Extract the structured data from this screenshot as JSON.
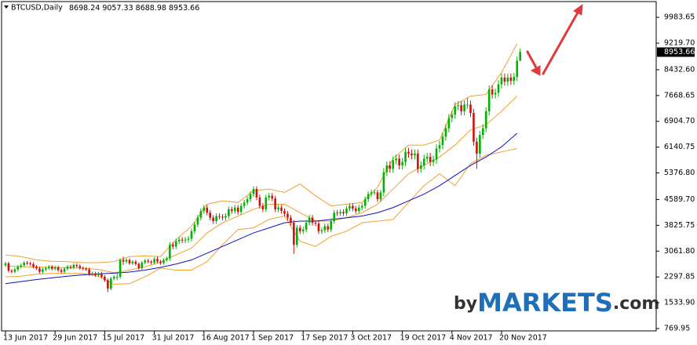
{
  "chart_data": {
    "type": "candlestick",
    "symbol": "BTCUSD,Daily",
    "categories": [
      "13 Jun 2017",
      null,
      null,
      null,
      null,
      null,
      null,
      null,
      null,
      null,
      null,
      null,
      null,
      null,
      null,
      null,
      "29 Jun 2017",
      null,
      null,
      null,
      null,
      null,
      null,
      null,
      null,
      null,
      null,
      null,
      null,
      null,
      null,
      null,
      "15 Jul 2017",
      null,
      null,
      null,
      null,
      null,
      null,
      null,
      null,
      null,
      null,
      null,
      null,
      null,
      null,
      null,
      "31 Jul 2017",
      null,
      null,
      null,
      null,
      null,
      null,
      null,
      null,
      null,
      null,
      null,
      null,
      null,
      null,
      null,
      "16 Aug 2017",
      null,
      null,
      null,
      null,
      null,
      null,
      null,
      null,
      null,
      null,
      null,
      null,
      null,
      null,
      null,
      "1 Sep 2017",
      null,
      null,
      null,
      null,
      null,
      null,
      null,
      null,
      null,
      null,
      null,
      null,
      null,
      null,
      null,
      "17 Sep 2017",
      null,
      null,
      null,
      null,
      null,
      null,
      null,
      null,
      null,
      null,
      null,
      null,
      null,
      null,
      null,
      "3 Oct 2017",
      null,
      null,
      null,
      null,
      null,
      null,
      null,
      null,
      null,
      null,
      null,
      null,
      null,
      null,
      null,
      "19 Oct 2017",
      null,
      null,
      null,
      null,
      null,
      null,
      null,
      null,
      null,
      null,
      null,
      null,
      null,
      null,
      null,
      "4 Nov 2017",
      null,
      null,
      null,
      null,
      null,
      null,
      null,
      null,
      null,
      null,
      null,
      null,
      null,
      null,
      null,
      "20 Nov 2017",
      null,
      null,
      null,
      null,
      null,
      null
    ],
    "open": [
      2650,
      2700,
      2480,
      2450,
      2520,
      2600,
      2640,
      2720,
      2700,
      2680,
      2600,
      2550,
      2450,
      2520,
      2560,
      2600,
      2540,
      2580,
      2500,
      2450,
      2540,
      2600,
      2580,
      2650,
      2620,
      2560,
      2540,
      2520,
      2380,
      2400,
      2350,
      2400,
      2300,
      2200,
      1950,
      2250,
      2300,
      2300,
      2800,
      2750,
      2800,
      2700,
      2750,
      2680,
      2560,
      2720,
      2780,
      2750,
      2720,
      2830,
      2750,
      2710,
      2800,
      2850,
      3250,
      3200,
      3350,
      3400,
      3380,
      3400,
      3430,
      3650,
      3850,
      4050,
      4250,
      4350,
      4200,
      4050,
      3950,
      4100,
      4080,
      4050,
      4100,
      4300,
      4250,
      4350,
      4220,
      4400,
      4500,
      4600,
      4750,
      4900,
      4650,
      4400,
      4300,
      4650,
      4700,
      4620,
      4300,
      4350,
      4250,
      4170,
      4050,
      3900,
      3250,
      3750,
      3650,
      3700,
      3900,
      4050,
      3900,
      3880,
      3650,
      3680,
      3800,
      3700,
      3950,
      4200,
      4180,
      4220,
      4180,
      4320,
      4400,
      4320,
      4250,
      4350,
      4400,
      4600,
      4750,
      4800,
      4800,
      4600,
      4800,
      5400,
      5600,
      5500,
      5750,
      5800,
      5600,
      5700,
      6000,
      5950,
      5900,
      5950,
      5500,
      5600,
      5800,
      5850,
      5700,
      5770,
      6100,
      6200,
      6450,
      6700,
      7000,
      7100,
      7350,
      7380,
      7200,
      7400,
      7400,
      7150,
      6300,
      5950,
      6500,
      6700,
      7200,
      7850,
      7700,
      7750,
      8000,
      8200,
      8080,
      8200,
      8100,
      8220,
      8698.24
    ],
    "high": [
      2750,
      2750,
      2530,
      2570,
      2650,
      2690,
      2770,
      2770,
      2750,
      2730,
      2650,
      2600,
      2570,
      2610,
      2650,
      2650,
      2630,
      2630,
      2550,
      2590,
      2650,
      2650,
      2700,
      2700,
      2670,
      2610,
      2590,
      2570,
      2450,
      2450,
      2450,
      2450,
      2350,
      2250,
      2300,
      2350,
      2400,
      2850,
      2900,
      2850,
      2850,
      2800,
      2800,
      2730,
      2770,
      2830,
      2830,
      2800,
      2880,
      2900,
      2800,
      2850,
      2900,
      3330,
      3330,
      3430,
      3480,
      3480,
      3480,
      3510,
      3730,
      3930,
      4130,
      4330,
      4430,
      4430,
      4280,
      4130,
      4180,
      4180,
      4160,
      4180,
      4380,
      4380,
      4430,
      4430,
      4480,
      4580,
      4680,
      4830,
      4980,
      4980,
      4730,
      4480,
      4730,
      4780,
      4780,
      4700,
      4430,
      4430,
      4330,
      4250,
      4130,
      3980,
      3830,
      3830,
      3780,
      3980,
      4130,
      4130,
      3980,
      3960,
      3760,
      3880,
      3880,
      4030,
      4280,
      4280,
      4300,
      4300,
      4400,
      4480,
      4480,
      4400,
      4430,
      4480,
      4680,
      4830,
      4880,
      4880,
      4880,
      4880,
      5520,
      5720,
      5720,
      5870,
      5920,
      5920,
      5820,
      6120,
      6120,
      6070,
      6070,
      6070,
      5720,
      5920,
      5970,
      5970,
      5890,
      6220,
      6320,
      6570,
      6820,
      7120,
      7220,
      7470,
      7500,
      7500,
      7520,
      7600,
      7520,
      7270,
      6420,
      6620,
      6820,
      7320,
      7970,
      7970,
      7870,
      8120,
      8320,
      8320,
      8320,
      8320,
      8340,
      8820,
      9057.33
    ],
    "low": [
      2600,
      2430,
      2400,
      2400,
      2470,
      2550,
      2590,
      2650,
      2630,
      2550,
      2500,
      2400,
      2400,
      2470,
      2510,
      2490,
      2490,
      2450,
      2400,
      2400,
      2490,
      2530,
      2530,
      2570,
      2510,
      2490,
      2470,
      2330,
      2330,
      2300,
      2300,
      2250,
      2150,
      1850,
      1900,
      2200,
      2200,
      2250,
      2650,
      2700,
      2650,
      2650,
      2630,
      2510,
      2510,
      2670,
      2700,
      2670,
      2670,
      2700,
      2660,
      2660,
      2750,
      2770,
      3120,
      3120,
      3270,
      3300,
      3300,
      3320,
      3350,
      3570,
      3770,
      3970,
      4170,
      4120,
      3970,
      3870,
      3870,
      4000,
      3970,
      3970,
      4020,
      4170,
      4170,
      4140,
      4140,
      4320,
      4420,
      4520,
      4670,
      4570,
      4320,
      4220,
      4220,
      4570,
      4540,
      4220,
      4220,
      4170,
      4090,
      3970,
      3820,
      2980,
      3170,
      3570,
      3570,
      3620,
      3820,
      3820,
      3800,
      3570,
      3570,
      3600,
      3620,
      3620,
      3870,
      4100,
      4100,
      4100,
      4100,
      4240,
      4240,
      4170,
      4170,
      4270,
      4320,
      4520,
      4670,
      4720,
      4520,
      4520,
      4680,
      5280,
      5380,
      5380,
      5630,
      5480,
      5480,
      5580,
      5830,
      5780,
      5780,
      5380,
      5380,
      5480,
      5680,
      5580,
      5580,
      5650,
      5980,
      6080,
      6330,
      6580,
      6880,
      6980,
      7230,
      7080,
      7080,
      7280,
      7030,
      6180,
      5500,
      5830,
      6380,
      6580,
      7080,
      7580,
      7580,
      7630,
      7880,
      7960,
      7960,
      7980,
      7980,
      8100,
      8688.98
    ],
    "close": [
      2700,
      2480,
      2450,
      2520,
      2600,
      2640,
      2720,
      2700,
      2680,
      2600,
      2550,
      2450,
      2520,
      2560,
      2600,
      2540,
      2580,
      2500,
      2450,
      2540,
      2600,
      2580,
      2650,
      2620,
      2560,
      2540,
      2520,
      2380,
      2400,
      2350,
      2400,
      2300,
      2200,
      1950,
      2250,
      2300,
      2300,
      2800,
      2750,
      2800,
      2700,
      2750,
      2680,
      2560,
      2720,
      2780,
      2750,
      2720,
      2830,
      2750,
      2710,
      2800,
      2850,
      3250,
      3200,
      3350,
      3400,
      3380,
      3400,
      3430,
      3650,
      3850,
      4050,
      4250,
      4350,
      4200,
      4050,
      3950,
      4100,
      4080,
      4050,
      4100,
      4300,
      4250,
      4350,
      4220,
      4400,
      4500,
      4600,
      4750,
      4900,
      4650,
      4400,
      4300,
      4650,
      4700,
      4620,
      4300,
      4350,
      4250,
      4170,
      4050,
      3900,
      3250,
      3750,
      3650,
      3700,
      3900,
      4050,
      3900,
      3880,
      3650,
      3680,
      3800,
      3700,
      3950,
      4200,
      4180,
      4220,
      4180,
      4320,
      4400,
      4320,
      4250,
      4350,
      4400,
      4600,
      4750,
      4800,
      4800,
      4600,
      4800,
      5400,
      5600,
      5500,
      5750,
      5800,
      5600,
      5700,
      6000,
      5950,
      5900,
      5950,
      5500,
      5600,
      5800,
      5850,
      5700,
      5770,
      6100,
      6200,
      6450,
      6700,
      7000,
      7100,
      7350,
      7380,
      7200,
      7400,
      7400,
      7150,
      6300,
      5950,
      6500,
      6700,
      7200,
      7850,
      7700,
      7750,
      8000,
      8200,
      8080,
      8200,
      8100,
      8220,
      8698.24,
      8953.66
    ],
    "up_color": "#00b300",
    "down_color": "#d01010",
    "indicator_x": [
      0,
      5,
      10,
      15,
      20,
      25,
      30,
      35,
      40,
      45,
      50,
      55,
      60,
      65,
      70,
      75,
      80,
      85,
      90,
      95,
      100,
      105,
      110,
      115,
      120,
      125,
      130,
      135,
      140,
      145,
      150,
      155,
      160,
      165
    ],
    "indicators": [
      {
        "color": "#f0a030",
        "values": [
          2950,
          2900,
          2800,
          2760,
          2750,
          2720,
          2720,
          2750,
          2900,
          2920,
          2900,
          3400,
          3800,
          4450,
          4550,
          4500,
          4850,
          4900,
          4800,
          5050,
          4700,
          4400,
          4450,
          4500,
          4950,
          5800,
          6200,
          6200,
          6350,
          7400,
          7650,
          7700,
          8350,
          9200
        ]
      },
      {
        "color": "#f0a030",
        "values": [
          2620,
          2600,
          2590,
          2580,
          2570,
          2560,
          2520,
          2420,
          2500,
          2600,
          2730,
          2950,
          3150,
          3600,
          3900,
          4100,
          4300,
          4450,
          4450,
          4200,
          3950,
          3950,
          4050,
          4200,
          4450,
          4900,
          5350,
          5600,
          5850,
          6200,
          6650,
          6800,
          7200,
          7650
        ]
      },
      {
        "color": "#f0a030",
        "values": [
          2300,
          2320,
          2380,
          2400,
          2400,
          2400,
          2320,
          2080,
          2100,
          2300,
          2560,
          2500,
          2500,
          2750,
          3250,
          3700,
          3750,
          4000,
          4100,
          3350,
          3200,
          3500,
          3650,
          3900,
          3950,
          4000,
          4500,
          5000,
          5350,
          5000,
          5650,
          5900,
          6000,
          6100
        ]
      },
      {
        "color": "#1010c0",
        "values": [
          2100,
          2160,
          2220,
          2270,
          2320,
          2360,
          2390,
          2410,
          2440,
          2500,
          2580,
          2680,
          2800,
          3000,
          3200,
          3400,
          3600,
          3750,
          3900,
          3950,
          3950,
          4000,
          4050,
          4100,
          4200,
          4350,
          4550,
          4750,
          5000,
          5300,
          5600,
          5850,
          6150,
          6550
        ]
      }
    ],
    "ylim": [
      700,
      10450
    ],
    "yticks": [
      9983.65,
      {
        "value": 9219.7,
        "label": "9219.70"
      },
      {
        "value": 8432.6,
        "label": "8432.60"
      },
      7668.65,
      {
        "value": 6904.7,
        "label": "6904.70"
      },
      6140.75,
      {
        "value": 5376.8,
        "label": "5376.80"
      },
      {
        "value": 4589.7,
        "label": "4589.70"
      },
      3825.75,
      {
        "value": 3061.8,
        "label": "3061.80"
      },
      2297.85,
      {
        "value": 1533.9,
        "label": "1533.90"
      },
      769.95
    ],
    "watermark": [
      "by",
      "MARKETS",
      ".com"
    ]
  }
}
